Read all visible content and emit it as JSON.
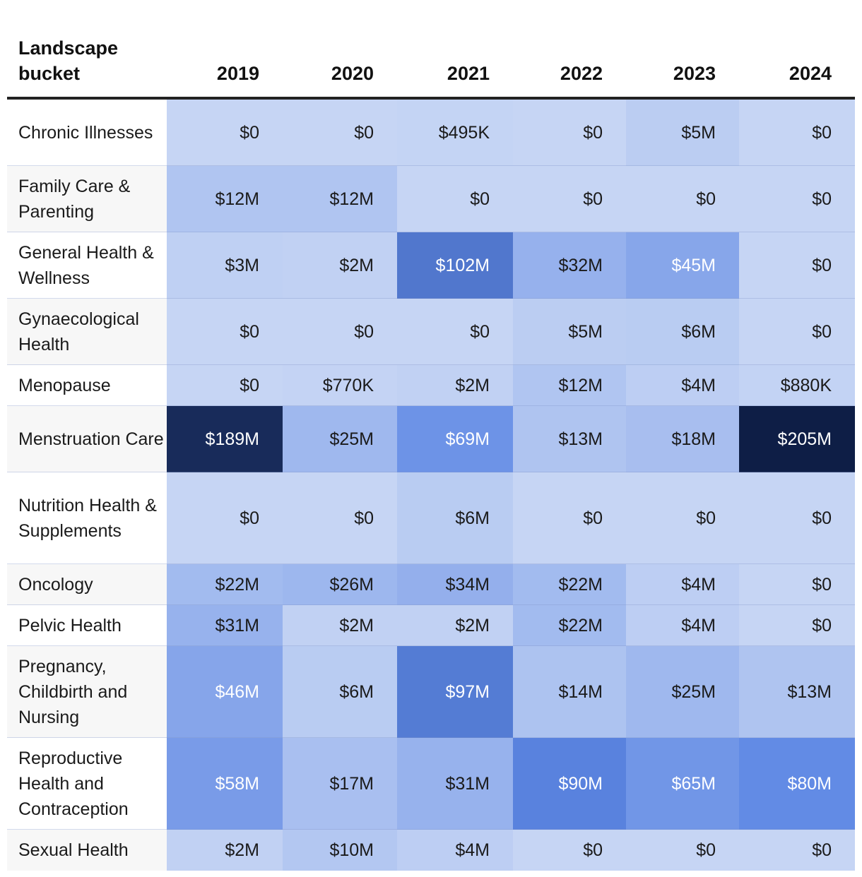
{
  "chart_data": {
    "type": "heatmap",
    "title": "",
    "row_header": "Landscape bucket",
    "columns": [
      "2019",
      "2020",
      "2021",
      "2022",
      "2023",
      "2024"
    ],
    "rows": [
      {
        "label": "Chronic Illnesses",
        "values": [
          0,
          0,
          0.495,
          0,
          5,
          0
        ],
        "labels": [
          "$0",
          "$0",
          "$495K",
          "$0",
          "$5M",
          "$0"
        ]
      },
      {
        "label": "Family Care & Parenting",
        "values": [
          12,
          12,
          0,
          0,
          0,
          0
        ],
        "labels": [
          "$12M",
          "$12M",
          "$0",
          "$0",
          "$0",
          "$0"
        ]
      },
      {
        "label": "General Health & Wellness",
        "values": [
          3,
          2,
          102,
          32,
          45,
          0
        ],
        "labels": [
          "$3M",
          "$2M",
          "$102M",
          "$32M",
          "$45M",
          "$0"
        ]
      },
      {
        "label": "Gynaecological Health",
        "values": [
          0,
          0,
          0,
          5,
          6,
          0
        ],
        "labels": [
          "$0",
          "$0",
          "$0",
          "$5M",
          "$6M",
          "$0"
        ]
      },
      {
        "label": "Menopause",
        "values": [
          0,
          0.77,
          2,
          12,
          4,
          0.88
        ],
        "labels": [
          "$0",
          "$770K",
          "$2M",
          "$12M",
          "$4M",
          "$880K"
        ]
      },
      {
        "label": "Menstruation Care",
        "values": [
          189,
          25,
          69,
          13,
          18,
          205
        ],
        "labels": [
          "$189M",
          "$25M",
          "$69M",
          "$13M",
          "$18M",
          "$205M"
        ]
      },
      {
        "label": "Nutrition Health & Supplements",
        "values": [
          0,
          0,
          6,
          0,
          0,
          0
        ],
        "labels": [
          "$0",
          "$0",
          "$6M",
          "$0",
          "$0",
          "$0"
        ]
      },
      {
        "label": "Oncology",
        "values": [
          22,
          26,
          34,
          22,
          4,
          0
        ],
        "labels": [
          "$22M",
          "$26M",
          "$34M",
          "$22M",
          "$4M",
          "$0"
        ]
      },
      {
        "label": "Pelvic Health",
        "values": [
          31,
          2,
          2,
          22,
          4,
          0
        ],
        "labels": [
          "$31M",
          "$2M",
          "$2M",
          "$22M",
          "$4M",
          "$0"
        ]
      },
      {
        "label": "Pregnancy, Childbirth and Nursing",
        "values": [
          46,
          6,
          97,
          14,
          25,
          13
        ],
        "labels": [
          "$46M",
          "$6M",
          "$97M",
          "$14M",
          "$25M",
          "$13M"
        ]
      },
      {
        "label": "Reproductive Health and Contraception",
        "values": [
          58,
          17,
          31,
          90,
          65,
          80
        ],
        "labels": [
          "$58M",
          "$17M",
          "$31M",
          "$90M",
          "$65M",
          "$80M"
        ]
      },
      {
        "label": "Sexual Health",
        "values": [
          2,
          10,
          4,
          0,
          0,
          0
        ],
        "labels": [
          "$2M",
          "$10M",
          "$4M",
          "$0",
          "$0",
          "$0"
        ]
      }
    ],
    "value_unit": "USD millions",
    "colors": {
      "low": "#c6d5f4",
      "mid": "#5c86e4",
      "high": "#0e1e46",
      "label_bg_alt": "#f7f7f7"
    }
  }
}
